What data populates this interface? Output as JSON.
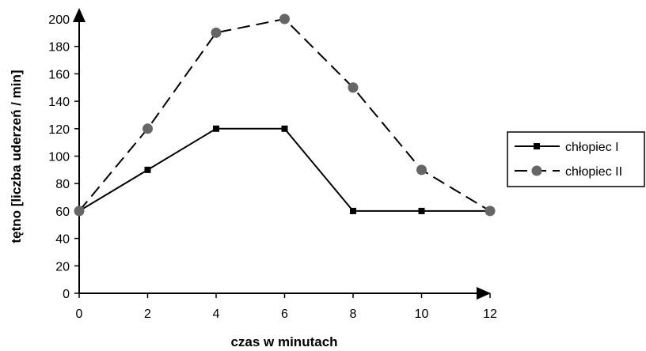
{
  "chart_data": {
    "type": "line",
    "title": "",
    "xlabel": "czas w minutach",
    "ylabel": "tętno [liczba uderzeń / min]",
    "x": [
      0,
      2,
      4,
      6,
      8,
      10,
      12
    ],
    "xlim": [
      0,
      12
    ],
    "ylim": [
      0,
      200
    ],
    "xticks": [
      "0",
      "2",
      "4",
      "6",
      "8",
      "10",
      "12"
    ],
    "yticks": [
      "0",
      "20",
      "40",
      "60",
      "80",
      "100",
      "120",
      "140",
      "160",
      "180",
      "200"
    ],
    "grid": false,
    "legend_position": "right",
    "series": [
      {
        "name": "chłopiec I",
        "values": [
          60,
          90,
          120,
          120,
          60,
          60,
          60
        ],
        "line_style": "solid",
        "marker": "square",
        "color": "#000000"
      },
      {
        "name": "chłopiec II",
        "values": [
          60,
          120,
          190,
          200,
          150,
          90,
          60
        ],
        "line_style": "dashed",
        "marker": "circle",
        "color": "#000000",
        "marker_color": "#666666"
      }
    ]
  }
}
